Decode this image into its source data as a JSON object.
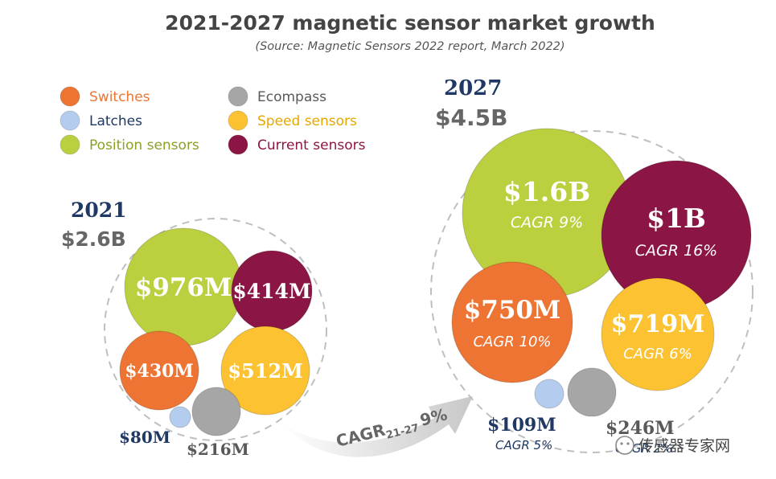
{
  "title": "2021-2027 magnetic sensor market growth",
  "subtitle": "(Source: Magnetic Sensors 2022 report, March 2022)",
  "colors": {
    "Switches": "#ed7432",
    "Latches": "#b4cdee",
    "Position sensors": "#bcd03f",
    "Ecompass": "#a6a6a6",
    "Speed sensors": "#fcc232",
    "Current sensors": "#8b1544"
  },
  "legend": [
    {
      "label": "Switches",
      "text_color": "#ed7432"
    },
    {
      "label": "Latches",
      "text_color": "#1f3864"
    },
    {
      "label": "Position sensors",
      "text_color": "#8aa128"
    },
    {
      "label": "Ecompass",
      "text_color": "#595959"
    },
    {
      "label": "Speed sensors",
      "text_color": "#e6a700"
    },
    {
      "label": "Current sensors",
      "text_color": "#8b1544"
    }
  ],
  "arrow_label": {
    "main": "CAGR",
    "sub": "21-27",
    "value": "9%"
  },
  "watermark": "传感器专家网",
  "chart_data": {
    "type": "bubble",
    "units": "USD",
    "panels": [
      {
        "year": "2021",
        "total_label": "$2.6B",
        "total": 2.6,
        "bubbles": [
          {
            "category": "Position sensors",
            "label": "$976M",
            "value": 976
          },
          {
            "category": "Current sensors",
            "label": "$414M",
            "value": 414
          },
          {
            "category": "Switches",
            "label": "$430M",
            "value": 430
          },
          {
            "category": "Speed sensors",
            "label": "$512M",
            "value": 512
          },
          {
            "category": "Latches",
            "label": "$80M",
            "value": 80
          },
          {
            "category": "Ecompass",
            "label": "$216M",
            "value": 216
          }
        ]
      },
      {
        "year": "2027",
        "total_label": "$4.5B",
        "total": 4.5,
        "bubbles": [
          {
            "category": "Position sensors",
            "label": "$1.6B",
            "value": 1600,
            "cagr": "CAGR 9%"
          },
          {
            "category": "Current sensors",
            "label": "$1B",
            "value": 1000,
            "cagr": "CAGR 16%"
          },
          {
            "category": "Switches",
            "label": "$750M",
            "value": 750,
            "cagr": "CAGR 10%"
          },
          {
            "category": "Speed sensors",
            "label": "$719M",
            "value": 719,
            "cagr": "CAGR 6%"
          },
          {
            "category": "Latches",
            "label": "$109M",
            "value": 109,
            "cagr": "CAGR 5%"
          },
          {
            "category": "Ecompass",
            "label": "$246M",
            "value": 246,
            "cagr": "CAGR 2%"
          }
        ]
      }
    ]
  }
}
